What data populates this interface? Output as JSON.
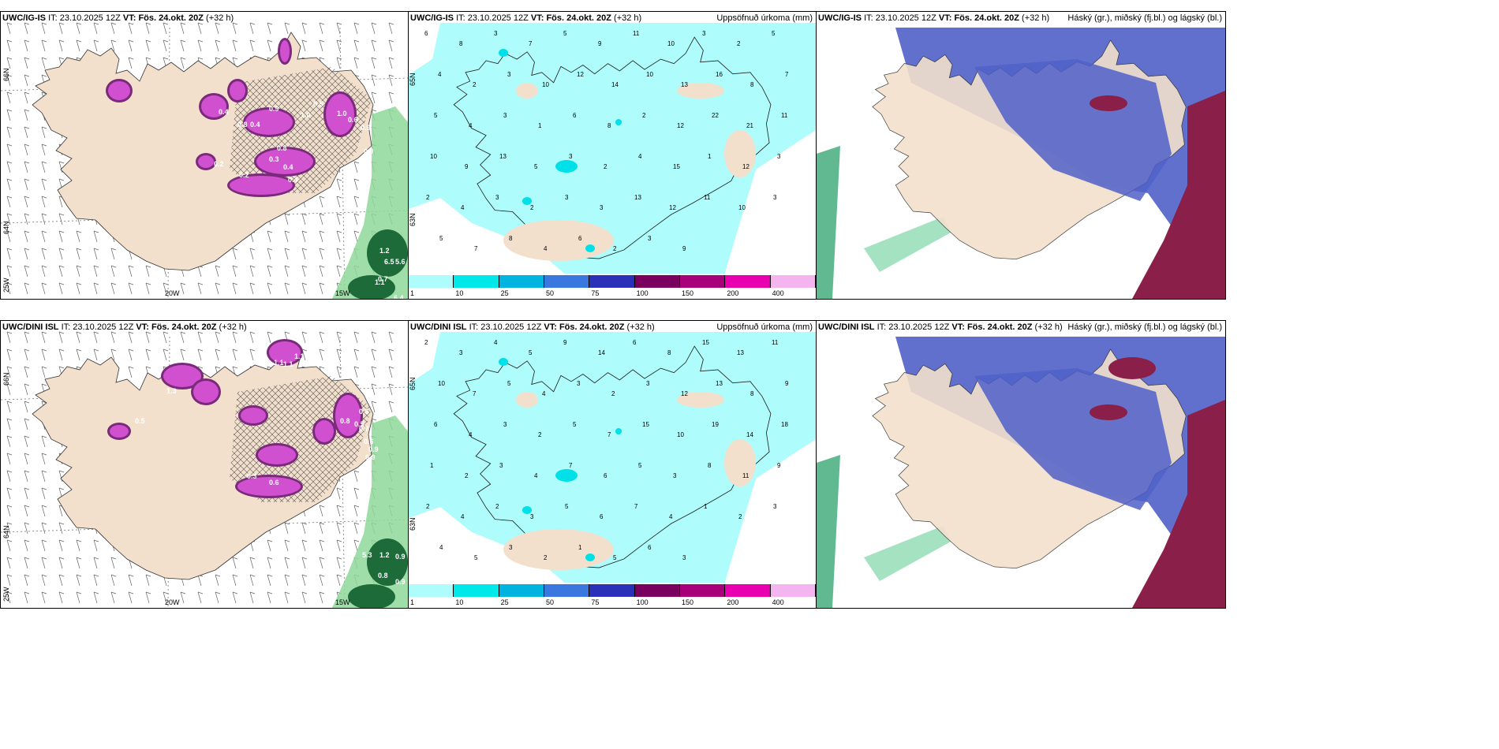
{
  "rows": [
    {
      "model": "UWC/IG-IS",
      "it_label": "IT:",
      "it_value": "23.10.2025 12Z",
      "vt_label": "VT:",
      "vt_value": "Fös. 24.okt. 20Z",
      "lead": "(+32 h)",
      "title_precip": "Uppsöfnuð úrkoma (mm)",
      "title_cloud": "Háský (gr.), miðský (fj.bl.) og lágský (bl.)",
      "lat_labels": [
        "66N",
        "64N",
        "25W"
      ],
      "lon_labels": [
        "20W",
        "15W"
      ],
      "precip_right_lat": [
        "65N",
        "63N"
      ]
    },
    {
      "model": "UWC/DINI ISL",
      "it_label": "IT:",
      "it_value": "23.10.2025 12Z",
      "vt_label": "VT:",
      "vt_value": "Fös. 24.okt. 20Z",
      "lead": "(+32 h)",
      "title_precip": "Uppsöfnuð úrkoma (mm)",
      "title_cloud": "Háský (gr.), miðský (fj.bl.) og lágský (bl.)",
      "lat_labels": [
        "66N",
        "64N",
        "25W"
      ],
      "lon_labels": [
        "20W",
        "15W"
      ],
      "precip_right_lat": [
        "65N",
        "63N"
      ]
    }
  ],
  "colorbar": {
    "ticks": [
      "1",
      "10",
      "25",
      "50",
      "75",
      "100",
      "150",
      "200",
      "400"
    ],
    "colors": [
      "#aefcfc",
      "#00e8e8",
      "#00b4e0",
      "#3a78e0",
      "#2a30b8",
      "#7a0060",
      "#a8007a",
      "#e800b0",
      "#f4b4f0"
    ]
  },
  "colors": {
    "land": "#f2e0cc",
    "precip_light": "#aefcfc",
    "precip_mid": "#00e0e8",
    "snow_purple": "#d050d0",
    "snow_dark": "#7a2a7a",
    "rain_green": "#8fd89a",
    "rain_dark": "#1e6b3a",
    "cloud_high": "#ffffff",
    "cloud_mid": "#5060c8",
    "cloud_low": "#8a1f4a"
  },
  "precip_points_top": [
    "6",
    "8",
    "3",
    "7",
    "5",
    "9",
    "11",
    "10",
    "3",
    "2",
    "5",
    "4",
    "2",
    "3",
    "10",
    "12",
    "14",
    "10",
    "13",
    "16",
    "8",
    "7",
    "5",
    "4",
    "3",
    "1",
    "6",
    "8",
    "2",
    "12",
    "22",
    "21",
    "11",
    "10",
    "9",
    "13",
    "5",
    "3",
    "2",
    "4",
    "15",
    "1",
    "12",
    "3",
    "2",
    "4",
    "3",
    "2",
    "3",
    "3",
    "13",
    "12",
    "11",
    "10",
    "3",
    "5",
    "7",
    "8",
    "4",
    "6",
    "2",
    "3",
    "9"
  ],
  "precip_points_bottom": [
    "2",
    "3",
    "4",
    "5",
    "9",
    "14",
    "6",
    "8",
    "15",
    "13",
    "11",
    "10",
    "7",
    "5",
    "4",
    "3",
    "2",
    "3",
    "12",
    "13",
    "8",
    "9",
    "6",
    "4",
    "3",
    "2",
    "5",
    "7",
    "15",
    "10",
    "19",
    "14",
    "18",
    "1",
    "2",
    "3",
    "4",
    "7",
    "6",
    "5",
    "3",
    "8",
    "11",
    "9",
    "2",
    "4",
    "2",
    "3",
    "5",
    "6",
    "7",
    "4",
    "1",
    "2",
    "3",
    "4",
    "5",
    "3",
    "2",
    "1",
    "5",
    "6",
    "3"
  ],
  "snow_labels_top": [
    "0.4",
    "0.8",
    "0.4",
    "0.9",
    "1.0",
    "0.5",
    "1.0",
    "0.6",
    "0.8",
    "0.4",
    "0.2",
    "0.4",
    "1.2",
    "0.9",
    "0.9",
    "0.2",
    "6.5",
    "5.6",
    "0.7",
    "1.1",
    "6.4",
    "0.3"
  ],
  "snow_labels_bottom": [
    "1.1",
    "1.1",
    "1.1",
    "1.3",
    "0.5",
    "0.6",
    "0.5",
    "0.8",
    "0.7",
    "0.6",
    "0.3",
    "0.6",
    "0.9",
    "5.3",
    "1.2",
    "0.9",
    "0.8",
    "0.9",
    "0.9"
  ]
}
